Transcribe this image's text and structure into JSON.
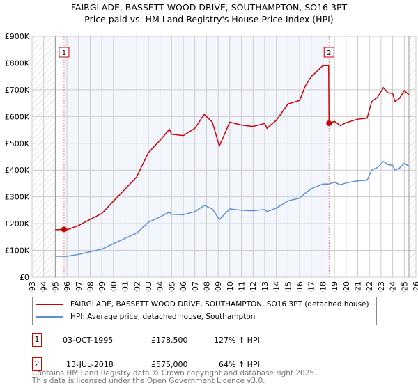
{
  "chart_data": {
    "type": "line",
    "title": "FAIRGLADE, BASSETT WOOD DRIVE, SOUTHAMPTON, SO16 3PT",
    "subtitle": "Price paid vs. HM Land Registry's House Price Index (HPI)",
    "xlim": [
      1993,
      2026
    ],
    "ylim": [
      0,
      900000
    ],
    "yticks": [
      0,
      100000,
      200000,
      300000,
      400000,
      500000,
      600000,
      700000,
      800000,
      900000
    ],
    "ytick_labels": [
      "£0",
      "£100K",
      "£200K",
      "£300K",
      "£400K",
      "£500K",
      "£600K",
      "£700K",
      "£800K",
      "£900K"
    ],
    "xticks": [
      1993,
      1994,
      1995,
      1996,
      1997,
      1998,
      1999,
      2000,
      2001,
      2002,
      2003,
      2004,
      2005,
      2006,
      2007,
      2008,
      2009,
      2010,
      2011,
      2012,
      2013,
      2014,
      2015,
      2016,
      2017,
      2018,
      2019,
      2020,
      2021,
      2022,
      2023,
      2024,
      2025,
      2026
    ],
    "grid": true,
    "data_range": [
      1995,
      2025.4
    ],
    "series": [
      {
        "name": "FAIRGLADE, BASSETT WOOD DRIVE, SOUTHAMPTON, SO16 3PT (detached house)",
        "color": "#cc0000",
        "x": [
          1995,
          1995.75,
          1996,
          1997,
          1998,
          1999,
          2000,
          2001,
          2002,
          2003,
          2004,
          2004.8,
          2005,
          2006,
          2007,
          2007.8,
          2008.5,
          2009.1,
          2010,
          2011,
          2012,
          2013,
          2013.2,
          2014,
          2015,
          2016,
          2016.5,
          2017,
          2018,
          2018.5,
          2018.53,
          2019,
          2019.5,
          2020,
          2021,
          2021.8,
          2022.2,
          2022.7,
          2023.2,
          2023.6,
          2024,
          2024.2,
          2024.6,
          2025,
          2025.4
        ],
        "y": [
          177000,
          178500,
          177000,
          193000,
          216000,
          238000,
          284000,
          329000,
          375000,
          465000,
          511000,
          552000,
          534000,
          529000,
          556000,
          608000,
          579000,
          490000,
          579000,
          568000,
          563000,
          574000,
          556000,
          586000,
          647000,
          660000,
          715000,
          749000,
          790000,
          790000,
          575000,
          582000,
          566000,
          577000,
          590000,
          594000,
          656000,
          672000,
          708000,
          689000,
          686000,
          656000,
          669000,
          697000,
          681000
        ]
      },
      {
        "name": "HPI: Average price, detached house, Southampton",
        "color": "#5b8fd6",
        "x": [
          1995,
          1996,
          1997,
          1998,
          1999,
          2000,
          2001,
          2002,
          2003,
          2004,
          2004.8,
          2005,
          2006,
          2007,
          2007.8,
          2008.5,
          2009.1,
          2010,
          2011,
          2012,
          2013,
          2013.2,
          2014,
          2015,
          2016,
          2016.5,
          2017,
          2018,
          2018.5,
          2019,
          2019.5,
          2020,
          2021,
          2021.8,
          2022.2,
          2022.7,
          2023.2,
          2023.6,
          2024,
          2024.2,
          2024.6,
          2025,
          2025.4
        ],
        "y": [
          78000,
          78000,
          85000,
          95000,
          105000,
          125000,
          145000,
          165000,
          205000,
          225000,
          243000,
          235000,
          233000,
          245000,
          268000,
          255000,
          215000,
          255000,
          250000,
          248000,
          253000,
          245000,
          258000,
          285000,
          295000,
          315000,
          330000,
          348000,
          348000,
          355000,
          345000,
          352000,
          360000,
          362000,
          400000,
          410000,
          432000,
          420000,
          418000,
          400000,
          408000,
          425000,
          415000
        ]
      }
    ],
    "sales": [
      {
        "label": "1",
        "x": 1995.75,
        "y": 178500,
        "date": "03-OCT-1995",
        "price": "£178,500",
        "hpi": "127% ↑ HPI"
      },
      {
        "label": "2",
        "x": 2018.53,
        "y": 575000,
        "date": "13-JUL-2018",
        "price": "£575,000",
        "hpi": "64% ↑ HPI"
      }
    ],
    "legend_position": "below"
  },
  "footer": [
    "Contains HM Land Registry data © Crown copyright and database right 2025.",
    "This data is licensed under the Open Government Licence v3.0."
  ]
}
